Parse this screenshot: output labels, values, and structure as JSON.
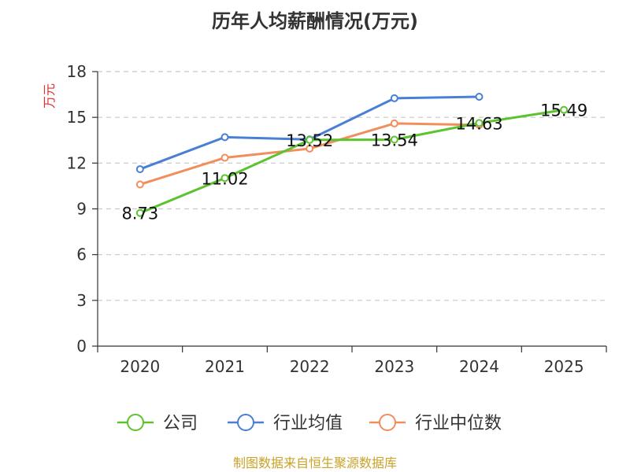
{
  "chart_data": {
    "type": "line",
    "title": "历年人均薪酬情况(万元)",
    "xlabel": "",
    "ylabel": "万元",
    "categories": [
      "2020",
      "2021",
      "2022",
      "2023",
      "2024",
      "2025"
    ],
    "ylim": [
      0,
      18
    ],
    "yticks": [
      0,
      3,
      6,
      9,
      12,
      15,
      18
    ],
    "grid": true,
    "legend_position": "bottom",
    "series": [
      {
        "name": "公司",
        "color": "#5cc32e",
        "values": [
          8.73,
          11.02,
          13.52,
          13.54,
          14.63,
          15.49
        ],
        "labels": [
          "8.73",
          "11.02",
          "13.52",
          "13.54",
          "14.63",
          "15.49"
        ]
      },
      {
        "name": "行业均值",
        "color": "#4a7fd6",
        "values": [
          11.6,
          13.7,
          13.55,
          16.25,
          16.35,
          null
        ]
      },
      {
        "name": "行业中位数",
        "color": "#f28e5c",
        "values": [
          10.6,
          12.35,
          12.95,
          14.6,
          14.5,
          null
        ]
      }
    ],
    "source": "制图数据来自恒生聚源数据库"
  }
}
